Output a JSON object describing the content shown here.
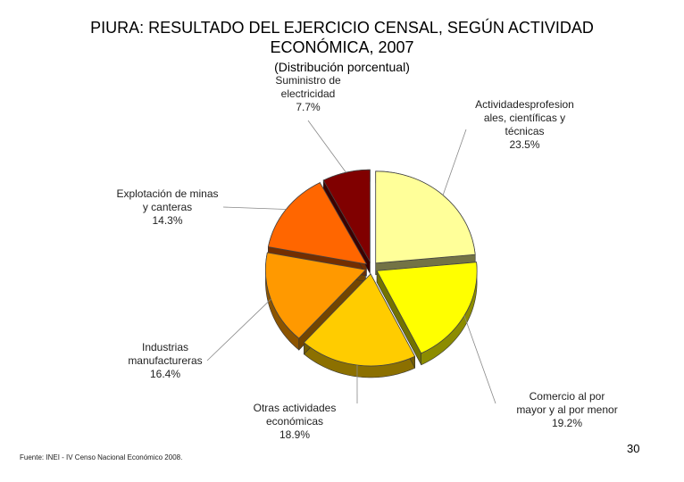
{
  "title_line1": "PIURA: RESULTADO DEL EJERCICIO CENSAL, SEGÚN ACTIVIDAD",
  "title_line2": "ECONÓMICA, 2007",
  "subtitle": "(Distribución porcentual)",
  "source": "Fuente: INEI - IV Censo Nacional Económico 2008.",
  "page_number": "30",
  "chart_data": {
    "type": "pie",
    "title": "PIURA: RESULTADO DEL EJERCICIO CENSAL, SEGÚN ACTIVIDAD ECONÓMICA, 2007",
    "subtitle": "(Distribución porcentual)",
    "legend": "none",
    "slices": [
      {
        "label_lines": [
          "Actividadesprofesion",
          "ales, científicas y",
          "técnicas"
        ],
        "value": 23.5,
        "value_label": "23.5%",
        "color": "#ffff99"
      },
      {
        "label_lines": [
          "Comercio al por",
          "mayor y al por menor"
        ],
        "value": 19.2,
        "value_label": "19.2%",
        "color": "#ffff00"
      },
      {
        "label_lines": [
          "Otras actividades",
          "económicas"
        ],
        "value": 18.9,
        "value_label": "18.9%",
        "color": "#ffcc00"
      },
      {
        "label_lines": [
          "Industrias",
          "manufactureras"
        ],
        "value": 16.4,
        "value_label": "16.4%",
        "color": "#ff9900"
      },
      {
        "label_lines": [
          "Explotación de minas",
          "y canteras"
        ],
        "value": 14.3,
        "value_label": "14.3%",
        "color": "#ff6600"
      },
      {
        "label_lines": [
          "Suministro de",
          "electricidad"
        ],
        "value": 7.7,
        "value_label": "7.7%",
        "color": "#800000"
      }
    ]
  }
}
